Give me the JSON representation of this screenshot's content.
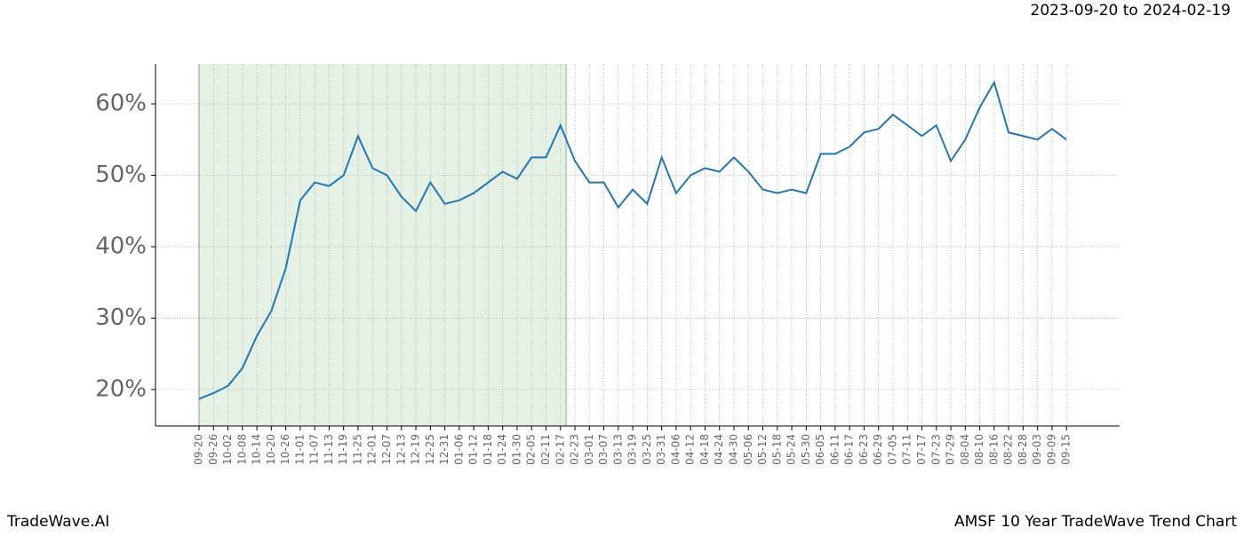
{
  "chart_data": {
    "type": "line",
    "title": "2023-09-20 to 2024-02-19",
    "footer_left": "TradeWave.AI",
    "footer_right": "AMSF 10 Year TradeWave Trend Chart",
    "categories": [
      "09-20",
      "09-26",
      "10-02",
      "10-08",
      "10-14",
      "10-20",
      "10-26",
      "11-01",
      "11-07",
      "11-13",
      "11-19",
      "11-25",
      "12-01",
      "12-07",
      "12-13",
      "12-19",
      "12-25",
      "12-31",
      "01-06",
      "01-12",
      "01-18",
      "01-24",
      "01-30",
      "02-05",
      "02-11",
      "02-17",
      "02-23",
      "03-01",
      "03-07",
      "03-13",
      "03-19",
      "03-25",
      "03-31",
      "04-06",
      "04-12",
      "04-18",
      "04-24",
      "04-30",
      "05-06",
      "05-12",
      "05-18",
      "05-24",
      "05-30",
      "06-05",
      "06-11",
      "06-17",
      "06-23",
      "06-29",
      "07-05",
      "07-11",
      "07-17",
      "07-23",
      "07-29",
      "08-04",
      "08-10",
      "08-16",
      "08-22",
      "08-28",
      "09-03",
      "09-09",
      "09-15"
    ],
    "values": [
      18.7,
      19.5,
      20.5,
      23,
      27.5,
      31,
      37,
      46.5,
      49,
      48.5,
      50,
      55.5,
      51,
      50,
      47,
      45,
      49,
      46,
      46.5,
      47.5,
      49,
      50.5,
      49.5,
      52.5,
      52.5,
      57,
      52,
      49,
      49,
      45.5,
      48,
      46,
      52.5,
      47.5,
      50,
      51,
      50.5,
      52.5,
      50.5,
      48,
      47.5,
      48,
      47.5,
      53,
      53,
      54,
      56,
      56.5,
      58.5,
      57,
      55.5,
      57,
      52,
      55,
      59.5,
      63,
      56,
      55.5,
      55,
      56.5,
      55
    ],
    "color": "#1f77b4",
    "ylim": [
      14.9,
      65.6
    ],
    "yticks": [
      {
        "value": 20,
        "label": "20%"
      },
      {
        "value": 30,
        "label": "30%"
      },
      {
        "value": 40,
        "label": "40%"
      },
      {
        "value": 50,
        "label": "50%"
      },
      {
        "value": 60,
        "label": "60%"
      }
    ],
    "grid": true
  }
}
